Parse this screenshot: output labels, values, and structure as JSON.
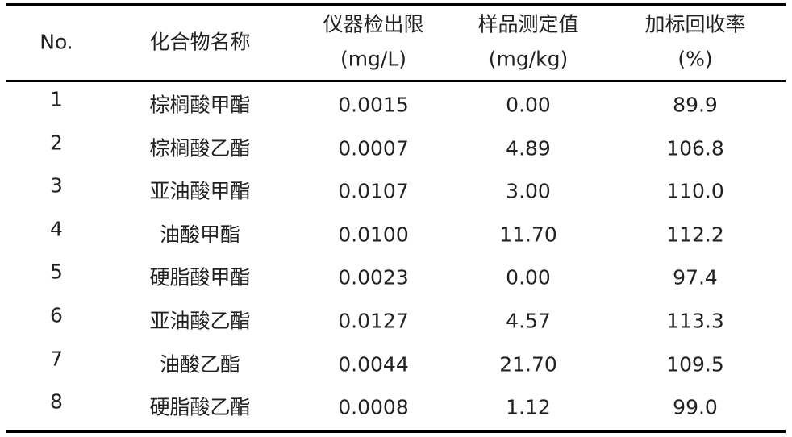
{
  "table": {
    "header": [
      [
        "No."
      ],
      [
        "化合物名称"
      ],
      [
        "仪器检出限",
        "(mg/L)"
      ],
      [
        "样品测定值",
        "(mg/kg)"
      ],
      [
        "加标回收率",
        "(%)"
      ]
    ],
    "rows": [
      [
        "1",
        "棕榈酸甲酯",
        "0.0015",
        "0.00",
        "89.9"
      ],
      [
        "2",
        "棕榈酸乙酯",
        "0.0007",
        "4.89",
        "106.8"
      ],
      [
        "3",
        "亚油酸甲酯",
        "0.0107",
        "3.00",
        "110.0"
      ],
      [
        "4",
        "油酸甲酯",
        "0.0100",
        "11.70",
        "112.2"
      ],
      [
        "5",
        "硬脂酸甲酯",
        "0.0023",
        "0.00",
        "97.4"
      ],
      [
        "6",
        "亚油酸乙酯",
        "0.0127",
        "4.57",
        "113.3"
      ],
      [
        "7",
        "油酸乙酯",
        "0.0044",
        "21.70",
        "109.5"
      ],
      [
        "8",
        "硬脂酸乙酯",
        "0.0008",
        "1.12",
        "99.0"
      ]
    ]
  }
}
